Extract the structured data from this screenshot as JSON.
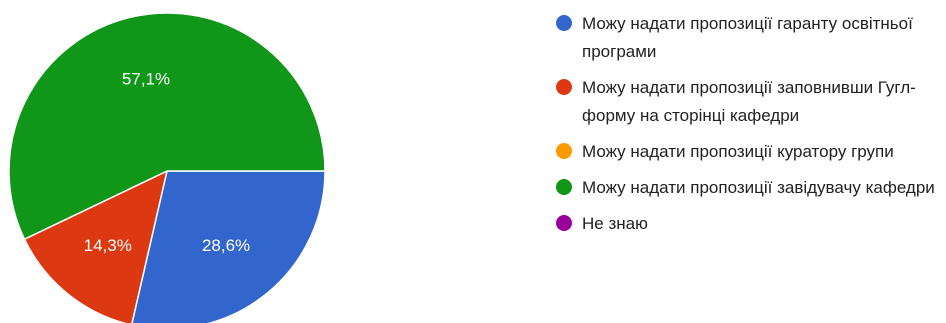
{
  "chart_data": {
    "type": "pie",
    "slices": [
      {
        "name": "Можу надати пропозиції гаранту освітньої програми",
        "value": 28.6,
        "label": "28,6%",
        "color": "#3366CC"
      },
      {
        "name": "Можу надати пропозиції заповнивши Гугл-форму на сторінці кафедри",
        "value": 14.3,
        "label": "14,3%",
        "color": "#DC3912"
      },
      {
        "name": "Можу надати пропозиції куратору групи",
        "value": 0,
        "label": "",
        "color": "#FF9900"
      },
      {
        "name": "Можу надати пропозиції завідувачу кафедри",
        "value": 57.1,
        "label": "57,1%",
        "color": "#109618"
      },
      {
        "name": "Не знаю",
        "value": 0,
        "label": "",
        "color": "#990099"
      }
    ],
    "legend_position": "right"
  }
}
